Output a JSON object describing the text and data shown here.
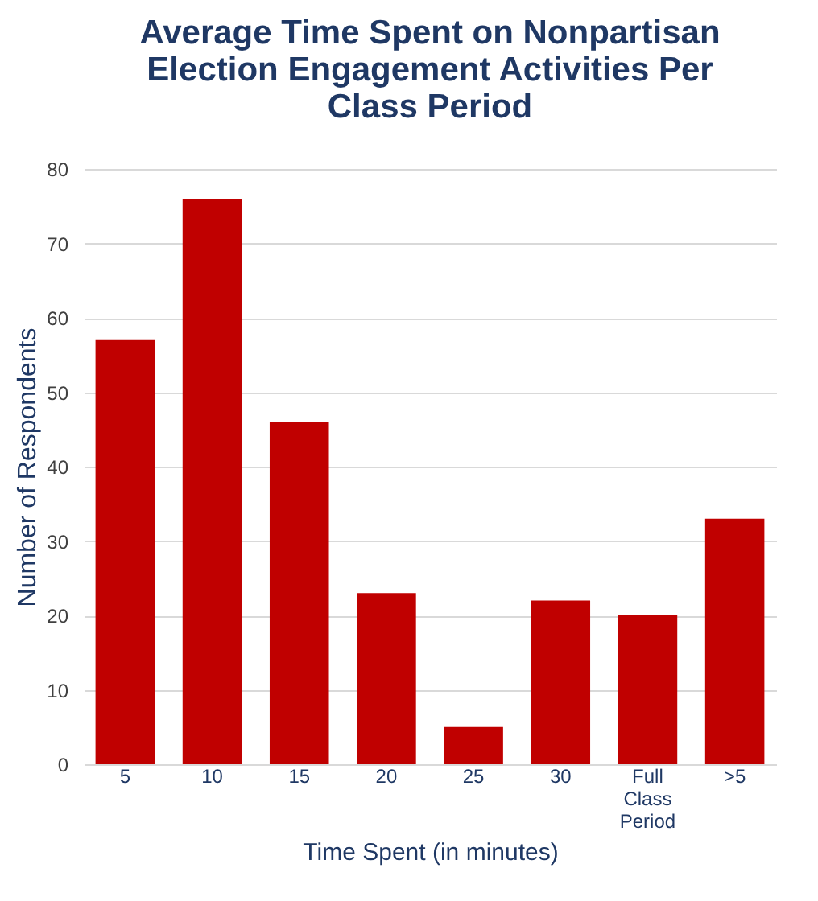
{
  "chart_data": {
    "type": "bar",
    "title": "Average Time Spent on Nonpartisan Election Engagement Activities Per Class Period",
    "xlabel": "Time Spent (in minutes)",
    "ylabel": "Number of Respondents",
    "categories": [
      "5",
      "10",
      "15",
      "20",
      "25",
      "30",
      "Full Class Period",
      ">5"
    ],
    "values": [
      57,
      76,
      46,
      23,
      5,
      22,
      20,
      33
    ],
    "color": "#c00000",
    "ylim": [
      0,
      80
    ],
    "yticks": [
      0,
      10,
      20,
      30,
      40,
      50,
      60,
      70,
      80
    ],
    "grid": true
  }
}
